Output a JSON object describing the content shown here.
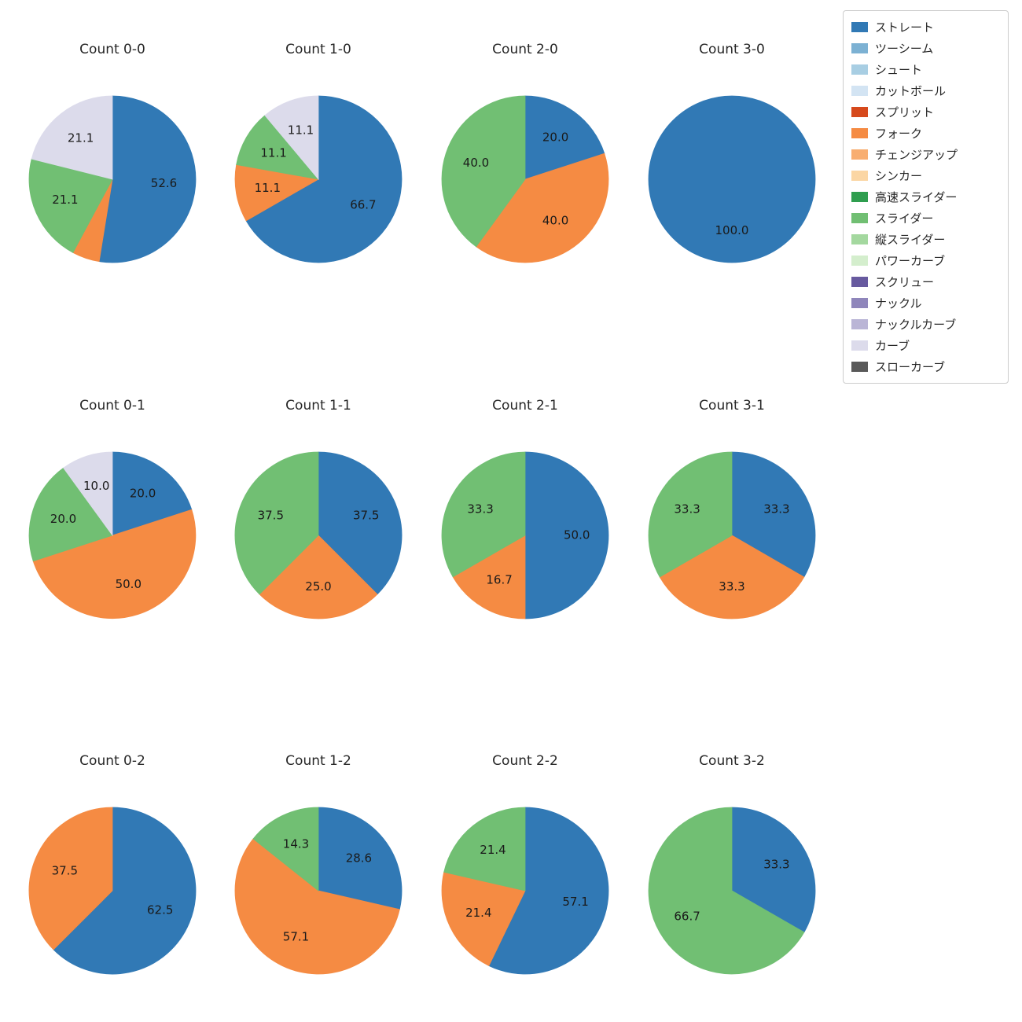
{
  "legend": {
    "items": [
      {
        "label": "ストレート",
        "color": "#3179b5"
      },
      {
        "label": "ツーシーム",
        "color": "#7cb1d3"
      },
      {
        "label": "シュート",
        "color": "#a8cee3"
      },
      {
        "label": "カットボール",
        "color": "#d3e4f3"
      },
      {
        "label": "スプリット",
        "color": "#d6491c"
      },
      {
        "label": "フォーク",
        "color": "#f58b43"
      },
      {
        "label": "チェンジアップ",
        "color": "#f8ae71"
      },
      {
        "label": "シンカー",
        "color": "#fbd6a4"
      },
      {
        "label": "高速スライダー",
        "color": "#2f9e4f"
      },
      {
        "label": "スライダー",
        "color": "#71bf73"
      },
      {
        "label": "縦スライダー",
        "color": "#a4d89f"
      },
      {
        "label": "パワーカーブ",
        "color": "#d4eecd"
      },
      {
        "label": "スクリュー",
        "color": "#675a9f"
      },
      {
        "label": "ナックル",
        "color": "#8f86bb"
      },
      {
        "label": "ナックルカーブ",
        "color": "#bab5d6"
      },
      {
        "label": "カーブ",
        "color": "#dcdbeb"
      },
      {
        "label": "スローカーブ",
        "color": "#595959"
      }
    ]
  },
  "chart_data": [
    {
      "type": "pie",
      "title": "Count 0-0",
      "start_angle": 90,
      "direction": "clockwise",
      "pctdistance": 0.62,
      "slices": [
        {
          "name": "ストレート",
          "value": 52.6,
          "label": "52.6"
        },
        {
          "name": "フォーク",
          "value": 5.3,
          "label": ""
        },
        {
          "name": "スライダー",
          "value": 21.1,
          "label": "21.1"
        },
        {
          "name": "カーブ",
          "value": 21.1,
          "label": "21.1"
        }
      ]
    },
    {
      "type": "pie",
      "title": "Count 1-0",
      "start_angle": 90,
      "direction": "clockwise",
      "pctdistance": 0.62,
      "slices": [
        {
          "name": "ストレート",
          "value": 66.7,
          "label": "66.7"
        },
        {
          "name": "フォーク",
          "value": 11.1,
          "label": "11.1"
        },
        {
          "name": "スライダー",
          "value": 11.1,
          "label": "11.1"
        },
        {
          "name": "カーブ",
          "value": 11.1,
          "label": "11.1"
        }
      ]
    },
    {
      "type": "pie",
      "title": "Count 2-0",
      "start_angle": 90,
      "direction": "clockwise",
      "pctdistance": 0.62,
      "slices": [
        {
          "name": "ストレート",
          "value": 20.0,
          "label": "20.0"
        },
        {
          "name": "フォーク",
          "value": 40.0,
          "label": "40.0"
        },
        {
          "name": "スライダー",
          "value": 40.0,
          "label": "40.0"
        }
      ]
    },
    {
      "type": "pie",
      "title": "Count 3-0",
      "start_angle": 90,
      "direction": "clockwise",
      "pctdistance": 0.62,
      "slices": [
        {
          "name": "ストレート",
          "value": 100.0,
          "label": "100.0"
        }
      ]
    },
    {
      "type": "pie",
      "title": "Count 0-1",
      "start_angle": 90,
      "direction": "clockwise",
      "pctdistance": 0.62,
      "slices": [
        {
          "name": "ストレート",
          "value": 20.0,
          "label": "20.0"
        },
        {
          "name": "フォーク",
          "value": 50.0,
          "label": "50.0"
        },
        {
          "name": "スライダー",
          "value": 20.0,
          "label": "20.0"
        },
        {
          "name": "カーブ",
          "value": 10.0,
          "label": "10.0"
        }
      ]
    },
    {
      "type": "pie",
      "title": "Count 1-1",
      "start_angle": 90,
      "direction": "clockwise",
      "pctdistance": 0.62,
      "slices": [
        {
          "name": "ストレート",
          "value": 37.5,
          "label": "37.5"
        },
        {
          "name": "フォーク",
          "value": 25.0,
          "label": "25.0"
        },
        {
          "name": "スライダー",
          "value": 37.5,
          "label": "37.5"
        }
      ]
    },
    {
      "type": "pie",
      "title": "Count 2-1",
      "start_angle": 90,
      "direction": "clockwise",
      "pctdistance": 0.62,
      "slices": [
        {
          "name": "ストレート",
          "value": 50.0,
          "label": "50.0"
        },
        {
          "name": "フォーク",
          "value": 16.7,
          "label": "16.7"
        },
        {
          "name": "スライダー",
          "value": 33.3,
          "label": "33.3"
        }
      ]
    },
    {
      "type": "pie",
      "title": "Count 3-1",
      "start_angle": 90,
      "direction": "clockwise",
      "pctdistance": 0.62,
      "slices": [
        {
          "name": "ストレート",
          "value": 33.3,
          "label": "33.3"
        },
        {
          "name": "フォーク",
          "value": 33.3,
          "label": "33.3"
        },
        {
          "name": "スライダー",
          "value": 33.3,
          "label": "33.3"
        }
      ]
    },
    {
      "type": "pie",
      "title": "Count 0-2",
      "start_angle": 90,
      "direction": "clockwise",
      "pctdistance": 0.62,
      "slices": [
        {
          "name": "ストレート",
          "value": 62.5,
          "label": "62.5"
        },
        {
          "name": "フォーク",
          "value": 37.5,
          "label": "37.5"
        }
      ]
    },
    {
      "type": "pie",
      "title": "Count 1-2",
      "start_angle": 90,
      "direction": "clockwise",
      "pctdistance": 0.62,
      "slices": [
        {
          "name": "ストレート",
          "value": 28.6,
          "label": "28.6"
        },
        {
          "name": "フォーク",
          "value": 57.1,
          "label": "57.1"
        },
        {
          "name": "スライダー",
          "value": 14.3,
          "label": "14.3"
        }
      ]
    },
    {
      "type": "pie",
      "title": "Count 2-2",
      "start_angle": 90,
      "direction": "clockwise",
      "pctdistance": 0.62,
      "slices": [
        {
          "name": "ストレート",
          "value": 57.1,
          "label": "57.1"
        },
        {
          "name": "フォーク",
          "value": 21.4,
          "label": "21.4"
        },
        {
          "name": "スライダー",
          "value": 21.4,
          "label": "21.4"
        }
      ]
    },
    {
      "type": "pie",
      "title": "Count 3-2",
      "start_angle": 90,
      "direction": "clockwise",
      "pctdistance": 0.62,
      "slices": [
        {
          "name": "ストレート",
          "value": 33.3,
          "label": "33.3"
        },
        {
          "name": "スライダー",
          "value": 66.7,
          "label": "66.7"
        }
      ]
    }
  ]
}
